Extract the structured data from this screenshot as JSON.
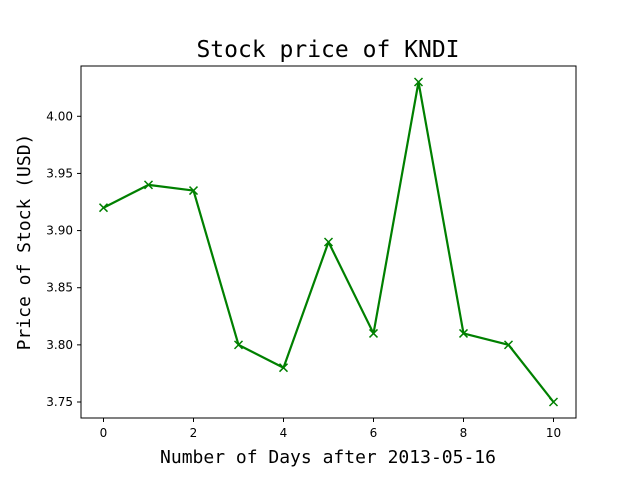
{
  "chart_data": {
    "type": "line",
    "title": "Stock price of KNDI",
    "xlabel": "Number of Days after 2013-05-16",
    "ylabel": "Price of Stock (USD)",
    "x": [
      0,
      1,
      2,
      3,
      4,
      5,
      6,
      7,
      8,
      9,
      10
    ],
    "series": [
      {
        "name": "KNDI",
        "values": [
          3.92,
          3.94,
          3.935,
          3.8,
          3.78,
          3.89,
          3.81,
          4.03,
          3.81,
          3.8,
          3.75
        ],
        "color": "#008000",
        "marker": "x"
      }
    ],
    "xlim": [
      -0.5,
      10.5
    ],
    "ylim": [
      3.736,
      4.044
    ],
    "xticks": [
      0,
      2,
      4,
      6,
      8,
      10
    ],
    "yticks": [
      3.75,
      3.8,
      3.85,
      3.9,
      3.95,
      4.0
    ],
    "xtick_labels": [
      "0",
      "2",
      "4",
      "6",
      "8",
      "10"
    ],
    "ytick_labels": [
      "3.75",
      "3.80",
      "3.85",
      "3.90",
      "3.95",
      "4.00"
    ],
    "grid": false,
    "legend": "none"
  }
}
